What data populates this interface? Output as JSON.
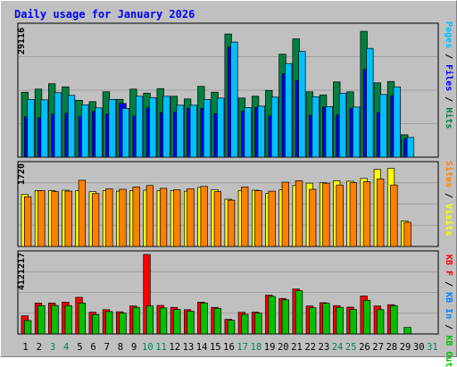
{
  "title": "Daily usage for January 2026",
  "panels": [
    {
      "id": "hits_files_pages",
      "max_label": "29116",
      "legend": [
        {
          "text": "Pages",
          "color": "#00c0ff"
        },
        {
          "text": " / ",
          "color": "#000000"
        },
        {
          "text": "Files",
          "color": "#0000ff"
        },
        {
          "text": " / ",
          "color": "#000000"
        },
        {
          "text": "Hits",
          "color": "#008040"
        }
      ]
    },
    {
      "id": "visits_sites",
      "max_label": "1720",
      "legend": [
        {
          "text": "Sites",
          "color": "#ff8000"
        },
        {
          "text": " / ",
          "color": "#000000"
        },
        {
          "text": "Visits",
          "color": "#ffff00"
        }
      ]
    },
    {
      "id": "kbytes",
      "max_label": "4121217",
      "legend": [
        {
          "text": "KB F",
          "color": "#ff0000"
        },
        {
          "text": " / ",
          "color": "#000000"
        },
        {
          "text": "KB In",
          "color": "#0080ff"
        },
        {
          "text": " / ",
          "color": "#000000"
        },
        {
          "text": "KB Out",
          "color": "#00c000"
        }
      ]
    }
  ],
  "colors": {
    "background": "#c0c0c0",
    "hits": "#008040",
    "files": "#0000ff",
    "pages": "#00c0ff",
    "visits": "#ffff00",
    "sites": "#ff8000",
    "kb_f": "#ff0000",
    "kb_out": "#00c000",
    "weekday_label": "#000000",
    "weekend_label": "#00805c"
  },
  "chart_data": [
    {
      "type": "bar",
      "title": "Daily usage for January 2026",
      "x": [
        1,
        2,
        3,
        4,
        5,
        6,
        7,
        8,
        9,
        10,
        11,
        12,
        13,
        14,
        15,
        16,
        17,
        18,
        19,
        20,
        21,
        22,
        23,
        24,
        25,
        26,
        27,
        28,
        29,
        30,
        31
      ],
      "weekend_days": [
        3,
        4,
        10,
        11,
        17,
        18,
        24,
        25,
        31
      ],
      "ylim": [
        0,
        29116
      ],
      "series": [
        {
          "name": "Hits",
          "values": [
            14500,
            15200,
            16400,
            15700,
            12700,
            12400,
            14600,
            12900,
            15200,
            14300,
            15300,
            13600,
            13000,
            15800,
            14500,
            27500,
            13200,
            13600,
            14900,
            23000,
            26400,
            14600,
            13900,
            16800,
            14600,
            28100,
            16600,
            16900,
            5000,
            null,
            null
          ]
        },
        {
          "name": "Files",
          "values": [
            9000,
            8800,
            9600,
            9800,
            9100,
            10200,
            9600,
            12000,
            9200,
            11000,
            9900,
            10100,
            10900,
            10900,
            9700,
            24600,
            10200,
            11100,
            9200,
            18600,
            17100,
            9300,
            11200,
            9400,
            10900,
            19600,
            9900,
            13700,
            4100,
            null,
            null
          ]
        },
        {
          "name": "Pages",
          "values": [
            12900,
            12800,
            14400,
            13800,
            11700,
            11000,
            12900,
            10900,
            13600,
            13300,
            13600,
            11600,
            11600,
            12900,
            13200,
            25700,
            11100,
            11400,
            13400,
            20900,
            23600,
            13500,
            11300,
            14300,
            11200,
            24300,
            14000,
            15700,
            4400,
            null,
            null
          ]
        }
      ]
    },
    {
      "type": "bar",
      "x": [
        1,
        2,
        3,
        4,
        5,
        6,
        7,
        8,
        9,
        10,
        11,
        12,
        13,
        14,
        15,
        16,
        17,
        18,
        19,
        20,
        21,
        22,
        23,
        24,
        25,
        26,
        27,
        28,
        29,
        30,
        31
      ],
      "ylim": [
        0,
        1720
      ],
      "series": [
        {
          "name": "Visits",
          "values": [
            1100,
            1180,
            1180,
            1190,
            1180,
            1160,
            1180,
            1170,
            1180,
            1190,
            1180,
            1180,
            1170,
            1250,
            1200,
            1000,
            1180,
            1190,
            1120,
            1200,
            1290,
            1340,
            1350,
            1390,
            1380,
            1440,
            1630,
            1650,
            540,
            null,
            null
          ]
        },
        {
          "name": "Sites",
          "values": [
            1050,
            1180,
            1160,
            1170,
            1400,
            1120,
            1220,
            1210,
            1260,
            1290,
            1230,
            1200,
            1220,
            1270,
            1160,
            980,
            1260,
            1180,
            1170,
            1360,
            1390,
            1210,
            1340,
            1300,
            1350,
            1370,
            1430,
            1300,
            510,
            null,
            null
          ]
        }
      ]
    },
    {
      "type": "bar",
      "x": [
        1,
        2,
        3,
        4,
        5,
        6,
        7,
        8,
        9,
        10,
        11,
        12,
        13,
        14,
        15,
        16,
        17,
        18,
        19,
        20,
        21,
        22,
        23,
        24,
        25,
        26,
        27,
        28,
        29,
        30,
        31
      ],
      "ylim": [
        0,
        4121217
      ],
      "series": [
        {
          "name": "KB F",
          "values": [
            940000,
            1600000,
            1600000,
            1650000,
            1900000,
            1130000,
            1260000,
            1150000,
            1450000,
            4121217,
            1480000,
            1380000,
            1260000,
            1650000,
            1380000,
            760000,
            1120000,
            1130000,
            2010000,
            1840000,
            2330000,
            1450000,
            1620000,
            1470000,
            1390000,
            1970000,
            1450000,
            1520000,
            null,
            null,
            null
          ]
        },
        {
          "name": "KB Out",
          "values": [
            700000,
            1470000,
            1480000,
            1470000,
            1600000,
            1010000,
            1160000,
            1080000,
            1380000,
            1450000,
            1350000,
            1270000,
            1180000,
            1610000,
            1330000,
            710000,
            1020000,
            1080000,
            1950000,
            1770000,
            2240000,
            1360000,
            1590000,
            1380000,
            1270000,
            1750000,
            1260000,
            1470000,
            340000,
            null,
            null
          ]
        }
      ]
    }
  ]
}
